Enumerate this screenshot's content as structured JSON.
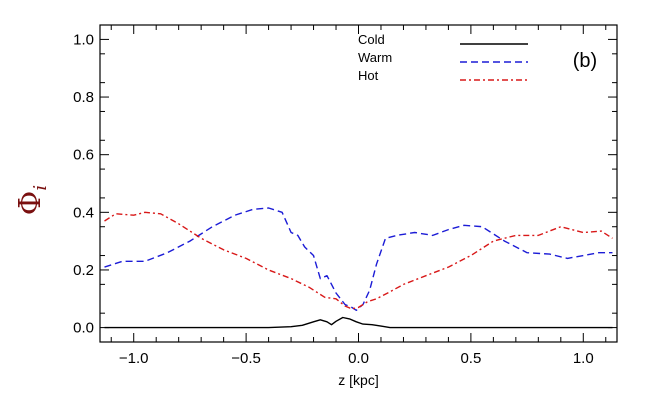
{
  "chart_data": {
    "type": "line",
    "title": "",
    "panel_label": "(b)",
    "xlabel": "z [kpc]",
    "ylabel": "Φ",
    "ylabel_subscript": "i",
    "xlim": [
      -1.15,
      1.15
    ],
    "ylim": [
      -0.05,
      1.05
    ],
    "xticks": [
      -1.0,
      -0.5,
      0.0,
      0.5,
      1.0
    ],
    "xtick_labels": [
      "−1.0",
      "−0.5",
      "0.0",
      "0.5",
      "1.0"
    ],
    "yticks": [
      0.0,
      0.2,
      0.4,
      0.6,
      0.8,
      1.0
    ],
    "ytick_labels": [
      "0.0",
      "0.2",
      "0.4",
      "0.6",
      "0.8",
      "1.0"
    ],
    "grid": false,
    "legend_position": "top-right",
    "series": [
      {
        "name": "Cold",
        "color": "#000000",
        "dash": "solid",
        "x": [
          -1.13,
          -0.4,
          -0.3,
          -0.25,
          -0.2,
          -0.17,
          -0.14,
          -0.12,
          -0.1,
          -0.07,
          -0.04,
          -0.01,
          0.02,
          0.06,
          0.1,
          0.14,
          0.5,
          1.13
        ],
        "y": [
          0.0,
          0.0,
          0.003,
          0.008,
          0.02,
          0.027,
          0.02,
          0.01,
          0.022,
          0.035,
          0.03,
          0.02,
          0.012,
          0.01,
          0.005,
          0.0,
          0.0,
          0.0
        ]
      },
      {
        "name": "Warm",
        "color": "#1c1cd6",
        "dash": "dashed",
        "x": [
          -1.13,
          -1.05,
          -0.95,
          -0.85,
          -0.75,
          -0.65,
          -0.55,
          -0.47,
          -0.4,
          -0.34,
          -0.3,
          -0.27,
          -0.24,
          -0.2,
          -0.17,
          -0.14,
          -0.1,
          -0.06,
          -0.03,
          -0.01,
          0.02,
          0.05,
          0.08,
          0.12,
          0.17,
          0.25,
          0.33,
          0.4,
          0.47,
          0.55,
          0.65,
          0.75,
          0.85,
          0.93,
          1.0,
          1.07,
          1.13
        ],
        "y": [
          0.21,
          0.23,
          0.23,
          0.26,
          0.3,
          0.35,
          0.39,
          0.41,
          0.415,
          0.4,
          0.33,
          0.32,
          0.28,
          0.25,
          0.17,
          0.18,
          0.12,
          0.08,
          0.07,
          0.06,
          0.08,
          0.13,
          0.22,
          0.31,
          0.32,
          0.33,
          0.32,
          0.34,
          0.355,
          0.35,
          0.3,
          0.26,
          0.255,
          0.24,
          0.25,
          0.26,
          0.26
        ]
      },
      {
        "name": "Hot",
        "color": "#d81818",
        "dash": "dashdot",
        "x": [
          -1.13,
          -1.08,
          -1.0,
          -0.95,
          -0.88,
          -0.8,
          -0.7,
          -0.6,
          -0.5,
          -0.4,
          -0.3,
          -0.22,
          -0.15,
          -0.1,
          -0.06,
          -0.03,
          0.0,
          0.04,
          0.08,
          0.13,
          0.2,
          0.3,
          0.4,
          0.5,
          0.6,
          0.7,
          0.8,
          0.9,
          1.0,
          1.08,
          1.13
        ],
        "y": [
          0.37,
          0.395,
          0.39,
          0.4,
          0.395,
          0.36,
          0.31,
          0.27,
          0.24,
          0.2,
          0.17,
          0.14,
          0.105,
          0.1,
          0.075,
          0.065,
          0.07,
          0.09,
          0.1,
          0.12,
          0.15,
          0.18,
          0.21,
          0.25,
          0.3,
          0.32,
          0.32,
          0.35,
          0.33,
          0.335,
          0.31
        ]
      }
    ]
  }
}
